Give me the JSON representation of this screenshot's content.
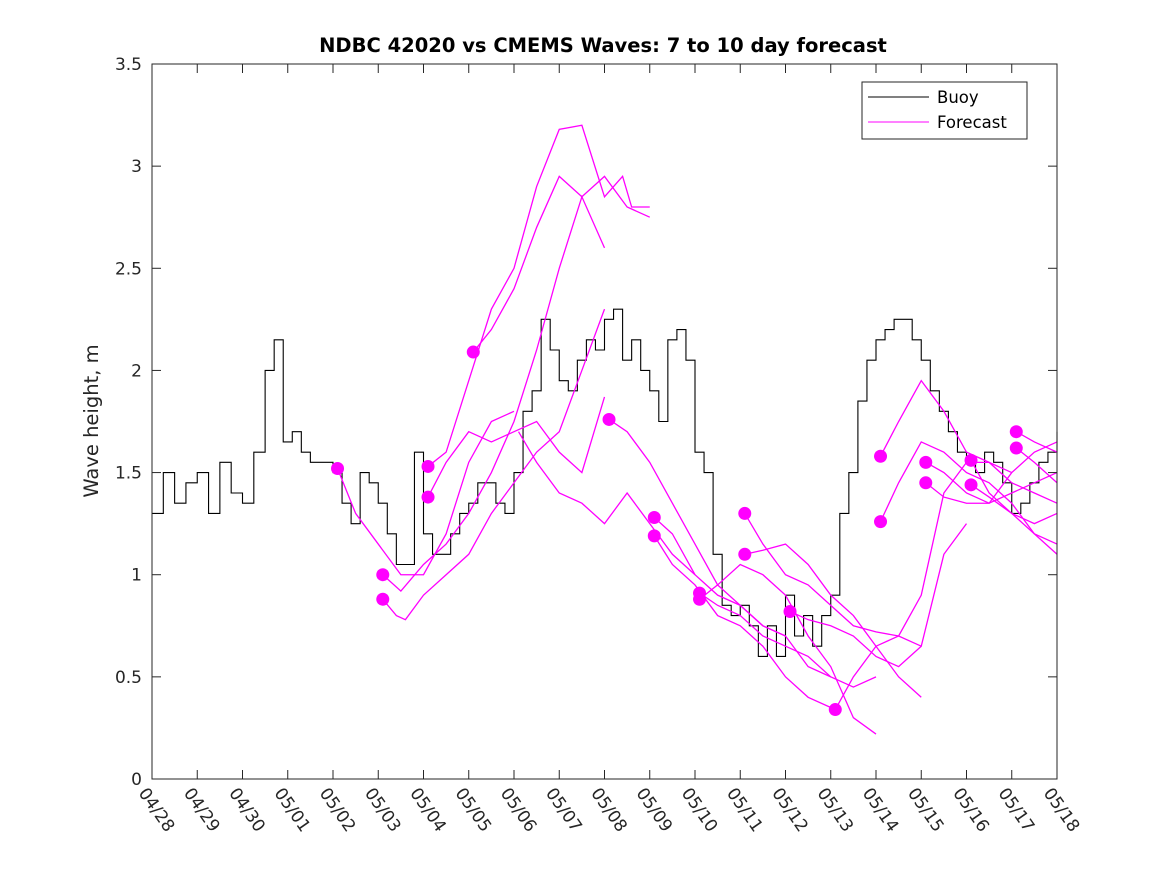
{
  "chart_data": {
    "type": "line",
    "title": "NDBC 42020 vs CMEMS Waves: 7 to 10 day forecast",
    "xlabel": "",
    "ylabel": "Wave height, m",
    "x_tick_labels": [
      "04/28",
      "04/29",
      "04/30",
      "05/01",
      "05/02",
      "05/03",
      "05/04",
      "05/05",
      "05/06",
      "05/07",
      "05/08",
      "05/09",
      "05/10",
      "05/11",
      "05/12",
      "05/13",
      "05/14",
      "05/15",
      "05/16",
      "05/17",
      "05/18"
    ],
    "y_tick_labels": [
      "0",
      "0.5",
      "1",
      "1.5",
      "2",
      "2.5",
      "3",
      "3.5"
    ],
    "xlim_days": [
      0,
      20
    ],
    "ylim": [
      0,
      3.5
    ],
    "grid": false,
    "legend_position": "top-right",
    "colors": {
      "buoy": "#000000",
      "forecast": "#ff00ff",
      "axes": "#262626"
    },
    "series": [
      {
        "name": "Buoy",
        "color": "#000000",
        "x": [
          0.0,
          0.25,
          0.5,
          0.75,
          1.0,
          1.25,
          1.5,
          1.75,
          2.0,
          2.25,
          2.5,
          2.7,
          2.9,
          3.1,
          3.3,
          3.5,
          3.75,
          4.0,
          4.2,
          4.4,
          4.6,
          4.8,
          5.0,
          5.2,
          5.4,
          5.6,
          5.8,
          6.0,
          6.2,
          6.4,
          6.6,
          6.8,
          7.0,
          7.2,
          7.4,
          7.6,
          7.8,
          8.0,
          8.2,
          8.4,
          8.6,
          8.8,
          9.0,
          9.2,
          9.4,
          9.6,
          9.8,
          10.0,
          10.2,
          10.4,
          10.6,
          10.8,
          11.0,
          11.2,
          11.4,
          11.6,
          11.8,
          12.0,
          12.2,
          12.4,
          12.6,
          12.8,
          13.0,
          13.2,
          13.4,
          13.6,
          13.8,
          14.0,
          14.2,
          14.4,
          14.6,
          14.8,
          15.0,
          15.2,
          15.4,
          15.6,
          15.8,
          16.0,
          16.2,
          16.4,
          16.6,
          16.8,
          17.0,
          17.2,
          17.4,
          17.6,
          17.8,
          18.0,
          18.2,
          18.4,
          18.6,
          18.8,
          19.0,
          19.2,
          19.4,
          19.6,
          19.8,
          20.0
        ],
        "y": [
          1.3,
          1.5,
          1.35,
          1.45,
          1.5,
          1.3,
          1.55,
          1.4,
          1.35,
          1.6,
          2.0,
          2.15,
          1.65,
          1.7,
          1.6,
          1.55,
          1.55,
          1.5,
          1.35,
          1.25,
          1.5,
          1.45,
          1.35,
          1.2,
          1.05,
          1.05,
          1.6,
          1.2,
          1.1,
          1.1,
          1.2,
          1.3,
          1.35,
          1.45,
          1.45,
          1.35,
          1.3,
          1.5,
          1.8,
          1.9,
          2.25,
          2.1,
          1.95,
          1.9,
          2.05,
          2.15,
          2.1,
          2.25,
          2.3,
          2.05,
          2.15,
          2.0,
          1.9,
          1.75,
          2.15,
          2.2,
          2.05,
          1.6,
          1.5,
          1.1,
          0.85,
          0.8,
          0.85,
          0.75,
          0.6,
          0.75,
          0.6,
          0.9,
          0.7,
          0.8,
          0.65,
          0.8,
          0.9,
          1.3,
          1.5,
          1.85,
          2.05,
          2.15,
          2.2,
          2.25,
          2.25,
          2.15,
          2.05,
          1.9,
          1.8,
          1.7,
          1.6,
          1.55,
          1.5,
          1.6,
          1.55,
          1.45,
          1.3,
          1.35,
          1.45,
          1.55,
          1.6,
          1.7
        ]
      },
      {
        "name": "Forecast",
        "color": "#ff00ff",
        "traces": [
          {
            "x": [
              4.1,
              4.5,
              5.0,
              5.5,
              6.0,
              6.5,
              7.0,
              7.5,
              8.0
            ],
            "y": [
              1.52,
              1.3,
              1.15,
              1.0,
              1.0,
              1.2,
              1.55,
              1.75,
              1.8
            ]
          },
          {
            "x": [
              5.1,
              5.5,
              6.0,
              6.5,
              7.0,
              7.5,
              8.0,
              8.5,
              9.0,
              9.5,
              10.0
            ],
            "y": [
              1.0,
              0.92,
              1.05,
              1.15,
              1.3,
              1.5,
              1.75,
              2.1,
              2.5,
              2.85,
              2.6
            ]
          },
          {
            "x": [
              5.1,
              5.4,
              5.6,
              6.0,
              6.5,
              7.0,
              7.5,
              8.0,
              8.5,
              9.0,
              9.5,
              10.0
            ],
            "y": [
              0.88,
              0.8,
              0.78,
              0.9,
              1.0,
              1.1,
              1.3,
              1.45,
              1.6,
              1.7,
              2.0,
              2.3
            ]
          },
          {
            "x": [
              6.1,
              6.5,
              7.0,
              7.5,
              8.0,
              8.5,
              9.0,
              9.5,
              10.0,
              10.4,
              10.6,
              11.0
            ],
            "y": [
              1.53,
              1.6,
              1.95,
              2.3,
              2.5,
              2.9,
              3.18,
              3.2,
              2.85,
              2.95,
              2.8,
              2.8
            ]
          },
          {
            "x": [
              6.1,
              6.5,
              7.0,
              7.5,
              8.0,
              8.5,
              9.0,
              9.5,
              10.0
            ],
            "y": [
              1.38,
              1.55,
              1.7,
              1.65,
              1.7,
              1.75,
              1.6,
              1.5,
              1.87
            ]
          },
          {
            "x": [
              7.1,
              7.5,
              8.0,
              8.5,
              9.0,
              9.5,
              10.0,
              10.5,
              11.0
            ],
            "y": [
              2.09,
              2.2,
              2.4,
              2.7,
              2.95,
              2.85,
              2.95,
              2.8,
              2.75
            ]
          },
          {
            "x": [
              8.1,
              8.5,
              9.0,
              9.5,
              10.0,
              10.5,
              11.0,
              11.5,
              12.0
            ],
            "y": [
              1.7,
              1.55,
              1.4,
              1.35,
              1.25,
              1.4,
              1.25,
              1.1,
              1.0
            ]
          },
          {
            "x": [
              10.1,
              10.5,
              11.0,
              11.5,
              12.0,
              12.5,
              13.0,
              13.5,
              14.0
            ],
            "y": [
              1.76,
              1.7,
              1.55,
              1.35,
              1.15,
              0.95,
              0.85,
              0.75,
              0.7
            ]
          },
          {
            "x": [
              11.1,
              11.5,
              12.0,
              12.5,
              13.0,
              13.5,
              14.0,
              14.5,
              15.0
            ],
            "y": [
              1.28,
              1.2,
              1.0,
              0.9,
              0.85,
              0.75,
              0.7,
              0.55,
              0.5
            ]
          },
          {
            "x": [
              11.1,
              11.5,
              12.0,
              12.5,
              13.0,
              13.5,
              14.0,
              14.5,
              15.0
            ],
            "y": [
              1.19,
              1.05,
              0.95,
              0.8,
              0.75,
              0.65,
              0.5,
              0.4,
              0.35
            ]
          },
          {
            "x": [
              12.1,
              12.5,
              13.0,
              13.5,
              14.0,
              14.5,
              15.0,
              15.5,
              16.0
            ],
            "y": [
              0.91,
              0.85,
              0.8,
              0.7,
              0.65,
              0.6,
              0.5,
              0.45,
              0.5
            ]
          },
          {
            "x": [
              12.1,
              12.5,
              13.0,
              13.5,
              14.0,
              14.5,
              15.0,
              15.5,
              16.0
            ],
            "y": [
              0.88,
              0.95,
              1.05,
              1.0,
              0.9,
              0.7,
              0.55,
              0.3,
              0.22
            ]
          },
          {
            "x": [
              13.1,
              13.5,
              14.0,
              14.5,
              15.0,
              15.5,
              16.0,
              16.5,
              17.0
            ],
            "y": [
              1.3,
              1.15,
              1.0,
              0.95,
              0.85,
              0.75,
              0.72,
              0.7,
              0.65
            ]
          },
          {
            "x": [
              13.1,
              13.5,
              14.0,
              14.5,
              15.0,
              15.5,
              16.0,
              16.5,
              17.0
            ],
            "y": [
              1.1,
              1.12,
              1.15,
              1.05,
              0.9,
              0.8,
              0.65,
              0.5,
              0.4
            ]
          },
          {
            "x": [
              14.1,
              14.5,
              15.0,
              15.5,
              16.0,
              16.5,
              17.0,
              17.5,
              18.0
            ],
            "y": [
              0.82,
              0.78,
              0.75,
              0.7,
              0.6,
              0.55,
              0.65,
              1.1,
              1.25
            ]
          },
          {
            "x": [
              15.1,
              15.5,
              16.0,
              16.5,
              17.0,
              17.5,
              18.0,
              18.5,
              19.0
            ],
            "y": [
              0.34,
              0.5,
              0.65,
              0.7,
              0.9,
              1.4,
              1.55,
              1.55,
              1.5
            ]
          },
          {
            "x": [
              16.1,
              16.5,
              17.0,
              17.5,
              18.0,
              18.5,
              19.0,
              19.5,
              20.0
            ],
            "y": [
              1.58,
              1.75,
              1.95,
              1.8,
              1.6,
              1.55,
              1.45,
              1.4,
              1.35
            ]
          },
          {
            "x": [
              16.1,
              16.5,
              17.0,
              17.5,
              18.0,
              18.5,
              19.0,
              19.5,
              20.0
            ],
            "y": [
              1.26,
              1.45,
              1.65,
              1.6,
              1.5,
              1.45,
              1.35,
              1.2,
              1.15
            ]
          },
          {
            "x": [
              17.1,
              17.5,
              18.0,
              18.5,
              19.0,
              19.5,
              20.0
            ],
            "y": [
              1.55,
              1.5,
              1.4,
              1.35,
              1.4,
              1.45,
              1.5
            ]
          },
          {
            "x": [
              17.1,
              17.5,
              18.0,
              18.5,
              19.0,
              19.5,
              20.0
            ],
            "y": [
              1.45,
              1.38,
              1.35,
              1.35,
              1.5,
              1.6,
              1.65
            ]
          },
          {
            "x": [
              18.1,
              18.5,
              19.0,
              19.5,
              20.0
            ],
            "y": [
              1.56,
              1.4,
              1.3,
              1.2,
              1.1
            ]
          },
          {
            "x": [
              18.1,
              18.5,
              19.0,
              19.5,
              20.0
            ],
            "y": [
              1.44,
              1.38,
              1.3,
              1.25,
              1.3
            ]
          },
          {
            "x": [
              19.1,
              19.5,
              20.0
            ],
            "y": [
              1.7,
              1.65,
              1.6
            ]
          },
          {
            "x": [
              19.1,
              19.5,
              20.0
            ],
            "y": [
              1.62,
              1.55,
              1.45
            ]
          }
        ],
        "markers": [
          {
            "x": 4.1,
            "y": 1.52
          },
          {
            "x": 5.1,
            "y": 1.0
          },
          {
            "x": 5.1,
            "y": 0.88
          },
          {
            "x": 6.1,
            "y": 1.53
          },
          {
            "x": 6.1,
            "y": 1.38
          },
          {
            "x": 7.1,
            "y": 2.09
          },
          {
            "x": 10.1,
            "y": 1.76
          },
          {
            "x": 11.1,
            "y": 1.28
          },
          {
            "x": 11.1,
            "y": 1.19
          },
          {
            "x": 12.1,
            "y": 0.91
          },
          {
            "x": 12.1,
            "y": 0.88
          },
          {
            "x": 13.1,
            "y": 1.3
          },
          {
            "x": 13.1,
            "y": 1.1
          },
          {
            "x": 14.1,
            "y": 0.82
          },
          {
            "x": 15.1,
            "y": 0.34
          },
          {
            "x": 16.1,
            "y": 1.58
          },
          {
            "x": 16.1,
            "y": 1.26
          },
          {
            "x": 17.1,
            "y": 1.55
          },
          {
            "x": 17.1,
            "y": 1.45
          },
          {
            "x": 18.1,
            "y": 1.56
          },
          {
            "x": 18.1,
            "y": 1.44
          },
          {
            "x": 19.1,
            "y": 1.7
          },
          {
            "x": 19.1,
            "y": 1.62
          }
        ]
      }
    ]
  }
}
